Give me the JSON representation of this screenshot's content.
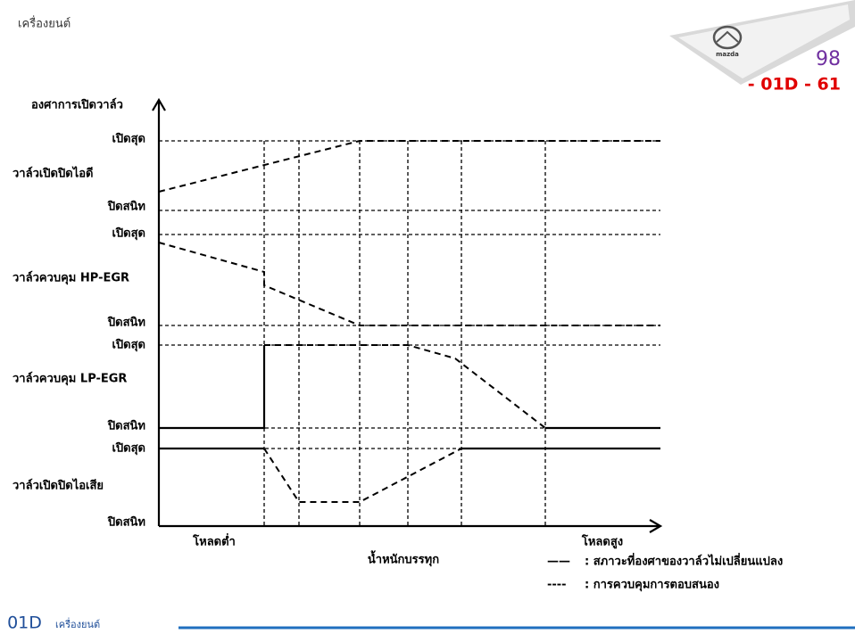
{
  "header": {
    "section": "เครื่องยนต์",
    "page": "98",
    "code": "- 01D - 61",
    "logo": "mazda"
  },
  "diagram": {
    "axis_title": "องศาการเปิดวาล์ว",
    "valves": [
      {
        "name": "วาล์วเปิดปิดไอดี",
        "open": "เปิดสุด",
        "closed": "ปิดสนิท"
      },
      {
        "name": "วาล์วควบคุม HP-EGR",
        "open": "เปิดสุด",
        "closed": "ปิดสนิท"
      },
      {
        "name": "วาล์วควบคุม LP-EGR",
        "open": "เปิดสุด",
        "closed": "ปิดสนิท"
      },
      {
        "name": "วาล์วเปิดปิดไอเสีย",
        "open": "เปิดสุด",
        "closed": "ปิดสนิท"
      }
    ],
    "x_low": "โหลดต่ำ",
    "x_title": "น้ำหนักบรรทุก",
    "x_high": "โหลดสูง",
    "legend": [
      {
        "symbol": "——",
        "text": ": สภาวะที่องศาของวาล์วไม่เปลี่ยนแปลง"
      },
      {
        "symbol": "----",
        "text": ": การควบคุมการตอบสนอง"
      }
    ]
  },
  "footer": {
    "code": ". 01D",
    "section": "เครื่องยนต์"
  }
}
